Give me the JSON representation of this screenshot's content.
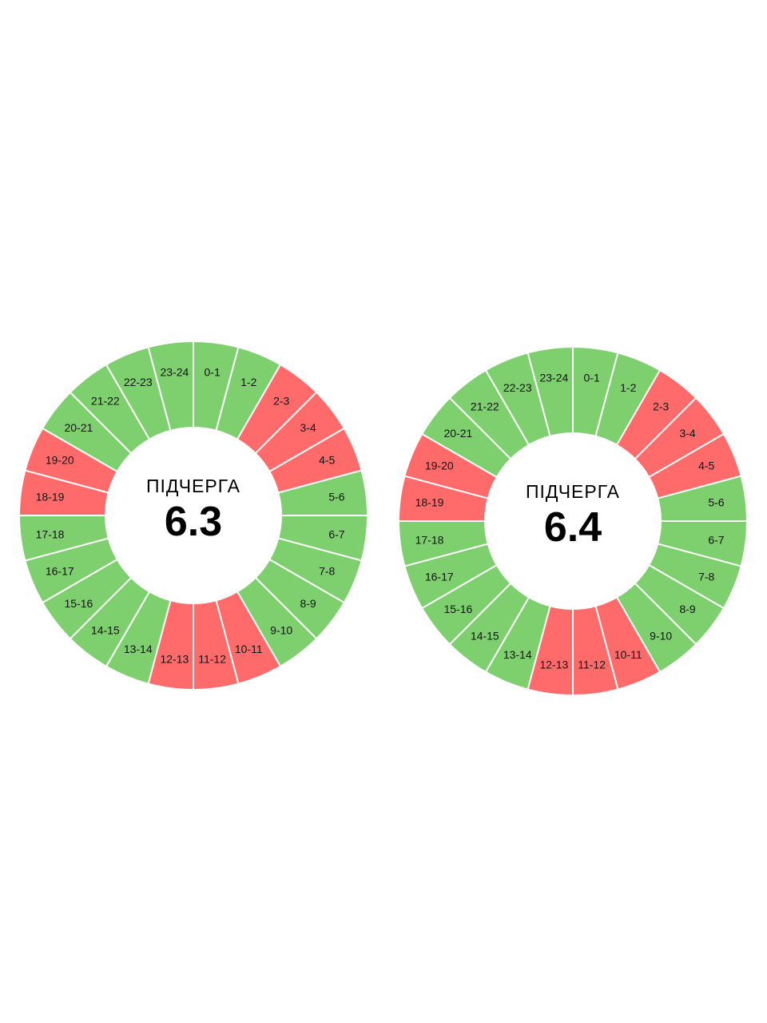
{
  "colors": {
    "off": "#ff6b6b",
    "on": "#7ecf6e",
    "separator": "#ffffff"
  },
  "chart_data": [
    {
      "type": "pie",
      "caption": "ПІДЧЕРГА",
      "value": "6.3",
      "hours": [
        "0-1",
        "1-2",
        "2-3",
        "3-4",
        "4-5",
        "5-6",
        "6-7",
        "7-8",
        "8-9",
        "9-10",
        "10-11",
        "11-12",
        "12-13",
        "13-14",
        "14-15",
        "15-16",
        "16-17",
        "17-18",
        "18-19",
        "19-20",
        "20-21",
        "21-22",
        "22-23",
        "23-24"
      ],
      "off": [
        false,
        false,
        true,
        true,
        true,
        false,
        false,
        false,
        false,
        false,
        true,
        true,
        true,
        false,
        false,
        false,
        false,
        false,
        true,
        true,
        false,
        false,
        false,
        false
      ]
    },
    {
      "type": "pie",
      "caption": "ПІДЧЕРГА",
      "value": "6.4",
      "hours": [
        "0-1",
        "1-2",
        "2-3",
        "3-4",
        "4-5",
        "5-6",
        "6-7",
        "7-8",
        "8-9",
        "9-10",
        "10-11",
        "11-12",
        "12-13",
        "13-14",
        "14-15",
        "15-16",
        "16-17",
        "17-18",
        "18-19",
        "19-20",
        "20-21",
        "21-22",
        "22-23",
        "23-24"
      ],
      "off": [
        false,
        false,
        true,
        true,
        true,
        false,
        false,
        false,
        false,
        false,
        true,
        true,
        true,
        false,
        false,
        false,
        false,
        false,
        true,
        true,
        false,
        false,
        false,
        false
      ]
    }
  ]
}
